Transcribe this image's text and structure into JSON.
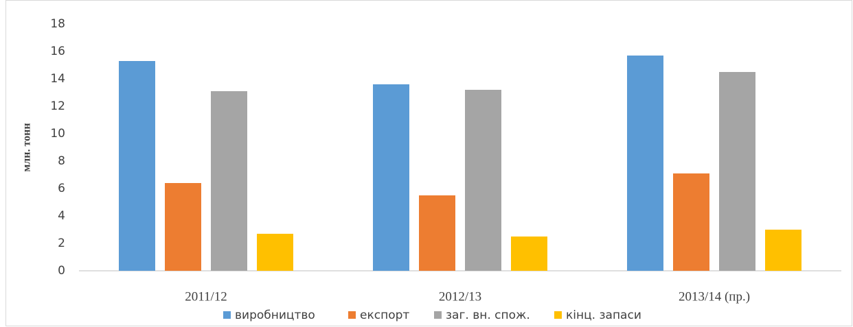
{
  "chart_data": {
    "type": "bar",
    "ylabel": "млн. тонн",
    "categories": [
      "2011/12",
      "2012/13",
      "2013/14 (пр.)"
    ],
    "series": [
      {
        "name": "виробництво",
        "color": "#5b9bd5",
        "values": [
          15.3,
          13.6,
          15.7
        ]
      },
      {
        "name": "експорт",
        "color": "#ed7d31",
        "values": [
          6.4,
          5.5,
          7.1
        ]
      },
      {
        "name": "заг. вн. спож.",
        "color": "#a5a5a5",
        "values": [
          13.1,
          13.2,
          14.5
        ]
      },
      {
        "name": "кінц. запаси",
        "color": "#ffc000",
        "values": [
          2.7,
          2.5,
          3.0
        ]
      }
    ],
    "ylim": [
      0,
      18
    ],
    "yticks": [
      0,
      2,
      4,
      6,
      8,
      10,
      12,
      14,
      16,
      18
    ],
    "legend": "bottom"
  }
}
